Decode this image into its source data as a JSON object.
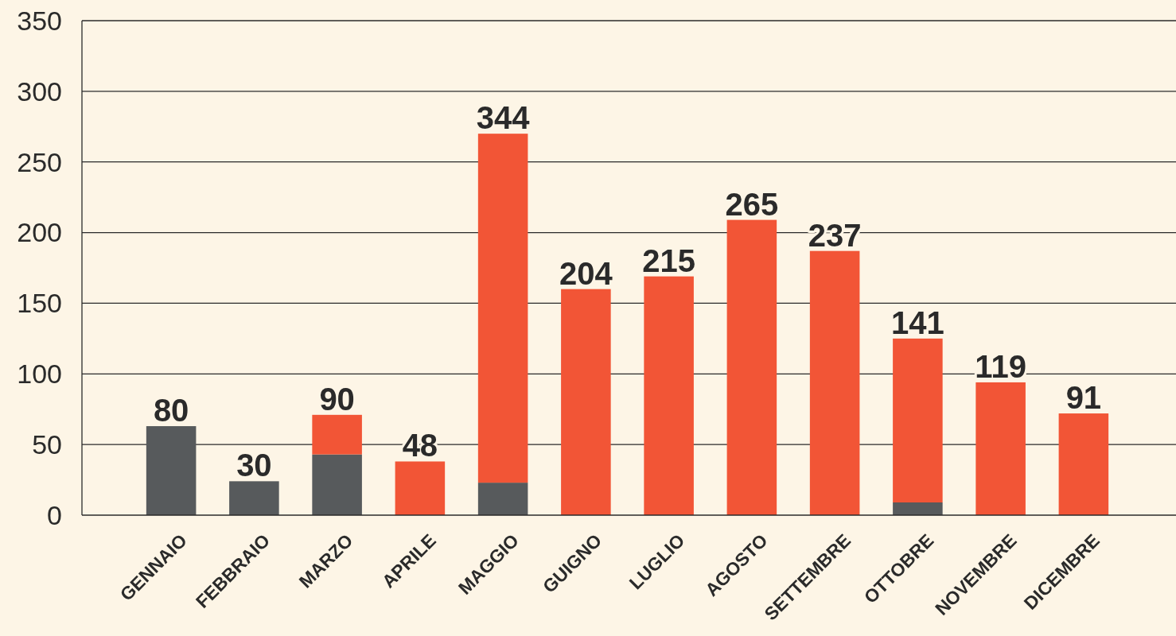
{
  "chart_data": {
    "type": "bar",
    "stacked": true,
    "categories": [
      "GENNAIO",
      "FEBBRAIO",
      "MARZO",
      "APRILE",
      "MAGGIO",
      "GUIGNO",
      "LUGLIO",
      "AGOSTO",
      "SETTEMBRE",
      "OTTOBRE",
      "NOVEMBRE",
      "DICEMBRE"
    ],
    "series": [
      {
        "color": "#575a5c",
        "values": [
          63,
          24,
          43,
          0,
          23,
          0,
          0,
          0,
          0,
          9,
          0,
          0
        ]
      },
      {
        "color": "#f25536",
        "values": [
          0,
          0,
          28,
          38,
          247,
          160,
          169,
          209,
          187,
          116,
          94,
          72
        ]
      }
    ],
    "annotations": [
      {
        "text": "80",
        "x": "GENNAIO",
        "y": 63
      },
      {
        "text": "30",
        "x": "FEBBRAIO",
        "y": 24
      },
      {
        "text": "90",
        "x": "MARZO",
        "y": 71
      },
      {
        "text": "48",
        "x": "APRILE",
        "y": 38
      },
      {
        "text": "344",
        "x": "MAGGIO",
        "y": 270
      },
      {
        "text": "204",
        "x": "GUIGNO",
        "y": 160
      },
      {
        "text": "215",
        "x": "LUGLIO",
        "y": 169
      },
      {
        "text": "265",
        "x": "AGOSTO",
        "y": 209
      },
      {
        "text": "237",
        "x": "SETTEMBRE",
        "y": 187
      },
      {
        "text": "141",
        "x": "OTTOBRE",
        "y": 125
      },
      {
        "text": "119",
        "x": "NOVEMBRE",
        "y": 94
      },
      {
        "text": "91",
        "x": "DICEMBRE",
        "y": 72
      }
    ],
    "ylim": [
      0,
      350
    ],
    "yticks": [
      0,
      50,
      100,
      150,
      200,
      250,
      300,
      350
    ],
    "grid": "y"
  }
}
